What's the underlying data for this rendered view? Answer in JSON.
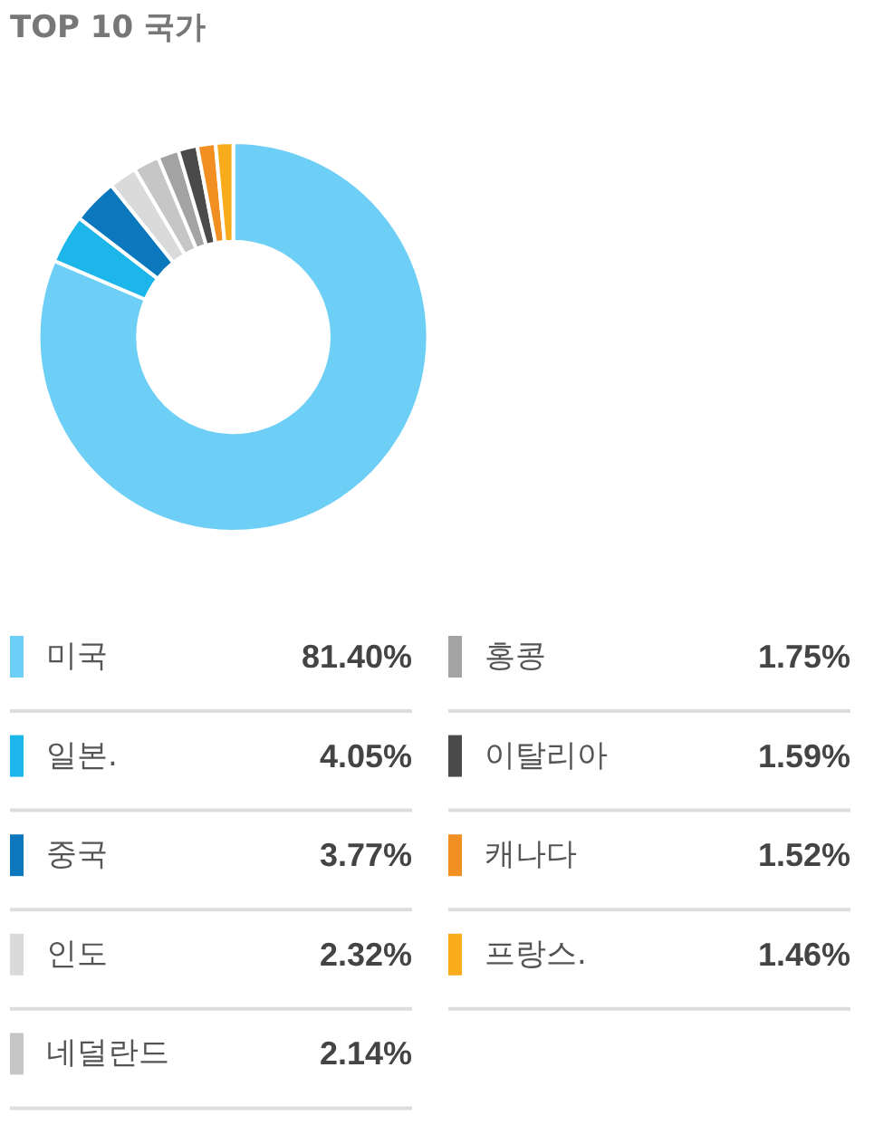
{
  "chart_data": {
    "type": "donut",
    "title": "TOP 10 국가",
    "categories": [
      "미국",
      "일본.",
      "중국",
      "인도",
      "네덜란드",
      "홍콩",
      "이탈리아",
      "캐나다",
      "프랑스."
    ],
    "values": [
      81.4,
      4.05,
      3.77,
      2.32,
      2.14,
      1.75,
      1.59,
      1.52,
      1.46
    ],
    "colors": [
      "#6dcff6",
      "#1cb6ea",
      "#0b77bd",
      "#dadada",
      "#c6c6c6",
      "#a3a3a3",
      "#4a4a4a",
      "#f28f22",
      "#f8ac1c"
    ],
    "value_labels": [
      "81.40%",
      "4.05%",
      "3.77%",
      "2.32%",
      "2.14%",
      "1.75%",
      "1.59%",
      "1.52%",
      "1.46%"
    ],
    "legend": "bottom"
  }
}
